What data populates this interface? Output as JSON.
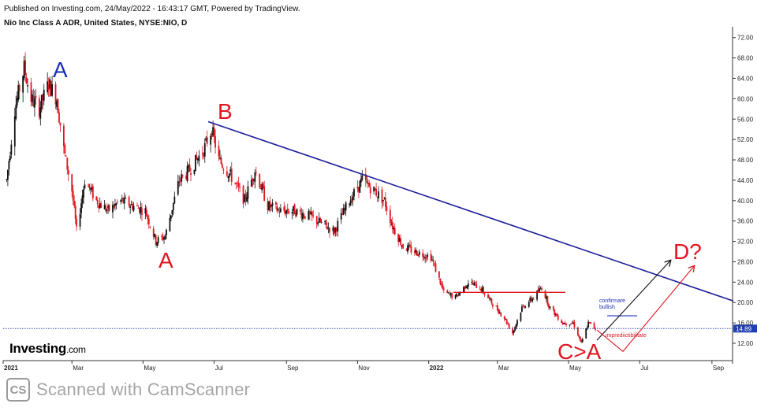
{
  "header": {
    "published": "Published on Investing.com, 24/May/2022 - 16:43:17 GMT, Powered by TradingView.",
    "symbol": "Nio Inc Class A ADR, United States, NYSE:NIO, D"
  },
  "branding": {
    "logo": "Investing",
    "logo_domain": ".com",
    "scanner_icon": "CS",
    "scanner_text": "Scanned with CamScanner"
  },
  "colors": {
    "up": "#111111",
    "down": "#e0151f",
    "trendline": "#1c1c9c",
    "wave_a1": "#1c2fb5",
    "wave_red": "#e0151f",
    "price_line": "#3a4fb0"
  },
  "chart_data": {
    "type": "candlestick",
    "y_ticks": [
      "72.00",
      "68.00",
      "64.00",
      "60.00",
      "56.00",
      "52.00",
      "48.00",
      "44.00",
      "40.00",
      "36.00",
      "32.00",
      "28.00",
      "24.00",
      "20.00",
      "16.00",
      "12.00"
    ],
    "ylim": [
      8.6,
      73.5
    ],
    "x_ticks": [
      "2021",
      "Mar",
      "May",
      "Jul",
      "Sep",
      "Nov",
      "2022",
      "Mar",
      "May",
      "Jul",
      "Sep"
    ],
    "last_price": "14.89",
    "price_path": [
      [
        "2021-01-04",
        44.0
      ],
      [
        "2021-01-11",
        58.0
      ],
      [
        "2021-01-19",
        66.0
      ],
      [
        "2021-01-25",
        60.0
      ],
      [
        "2021-02-01",
        58.0
      ],
      [
        "2021-02-09",
        63.0
      ],
      [
        "2021-02-16",
        60.0
      ],
      [
        "2021-02-22",
        50.0
      ],
      [
        "2021-03-01",
        42.0
      ],
      [
        "2021-03-05",
        34.0
      ],
      [
        "2021-03-12",
        44.0
      ],
      [
        "2021-03-22",
        40.0
      ],
      [
        "2021-04-01",
        38.0
      ],
      [
        "2021-04-12",
        40.0
      ],
      [
        "2021-04-22",
        39.0
      ],
      [
        "2021-05-03",
        38.0
      ],
      [
        "2021-05-12",
        32.0
      ],
      [
        "2021-05-20",
        33.0
      ],
      [
        "2021-06-01",
        44.0
      ],
      [
        "2021-06-10",
        46.0
      ],
      [
        "2021-06-22",
        50.0
      ],
      [
        "2021-06-29",
        54.0
      ],
      [
        "2021-07-05",
        48.0
      ],
      [
        "2021-07-15",
        45.0
      ],
      [
        "2021-07-27",
        40.0
      ],
      [
        "2021-08-05",
        46.0
      ],
      [
        "2021-08-16",
        39.0
      ],
      [
        "2021-08-26",
        38.0
      ],
      [
        "2021-09-08",
        38.0
      ],
      [
        "2021-09-20",
        37.0
      ],
      [
        "2021-10-05",
        35.0
      ],
      [
        "2021-10-12",
        34.0
      ],
      [
        "2021-10-25",
        40.0
      ],
      [
        "2021-11-05",
        44.0
      ],
      [
        "2021-11-15",
        42.0
      ],
      [
        "2021-11-24",
        40.0
      ],
      [
        "2021-12-01",
        35.0
      ],
      [
        "2021-12-10",
        31.0
      ],
      [
        "2021-12-20",
        30.0
      ],
      [
        "2022-01-03",
        29.0
      ],
      [
        "2022-01-14",
        22.0
      ],
      [
        "2022-01-24",
        21.0
      ],
      [
        "2022-02-04",
        24.0
      ],
      [
        "2022-02-14",
        23.0
      ],
      [
        "2022-02-24",
        20.0
      ],
      [
        "2022-03-07",
        17.0
      ],
      [
        "2022-03-14",
        14.0
      ],
      [
        "2022-03-22",
        19.0
      ],
      [
        "2022-04-01",
        21.0
      ],
      [
        "2022-04-08",
        23.0
      ],
      [
        "2022-04-15",
        19.0
      ],
      [
        "2022-04-26",
        16.0
      ],
      [
        "2022-05-05",
        16.0
      ],
      [
        "2022-05-12",
        12.0
      ],
      [
        "2022-05-18",
        16.0
      ],
      [
        "2022-05-24",
        14.89
      ]
    ],
    "annotations": {
      "wave_a1": "A",
      "wave_a2": "A",
      "wave_b": "B",
      "wave_c": "C>A",
      "wave_d": "D?",
      "note_bullish": "confirmare\nbullish",
      "note_invalidation": "imprediictibilitate"
    }
  }
}
